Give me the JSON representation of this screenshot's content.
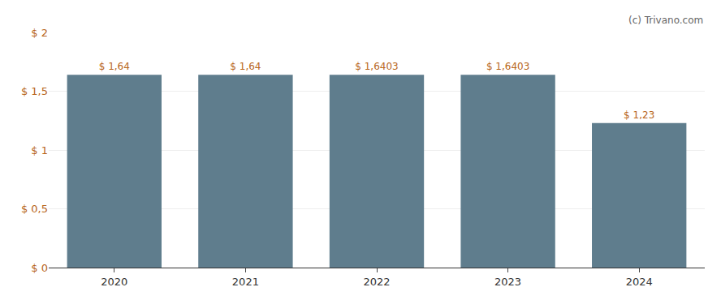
{
  "chart_data": {
    "type": "bar",
    "categories": [
      "2020",
      "2021",
      "2022",
      "2023",
      "2024"
    ],
    "values": [
      1.64,
      1.64,
      1.6403,
      1.6403,
      1.23
    ],
    "value_labels": [
      "$ 1,64",
      "$ 1,64",
      "$ 1,6403",
      "$ 1,6403",
      "$ 1,23"
    ],
    "color": "#5f7d8d",
    "ylim": [
      0,
      2.0
    ],
    "yticks": [
      {
        "value": 0,
        "label": "$ 0"
      },
      {
        "value": 0.5,
        "label": "$ 0,5"
      },
      {
        "value": 1.0,
        "label": "$ 1"
      },
      {
        "value": 1.5,
        "label": "$ 1,5"
      },
      {
        "value": 2.0,
        "label": "$ 2"
      }
    ],
    "grid": true,
    "annotations": [
      "(c) Trivano.com"
    ]
  }
}
